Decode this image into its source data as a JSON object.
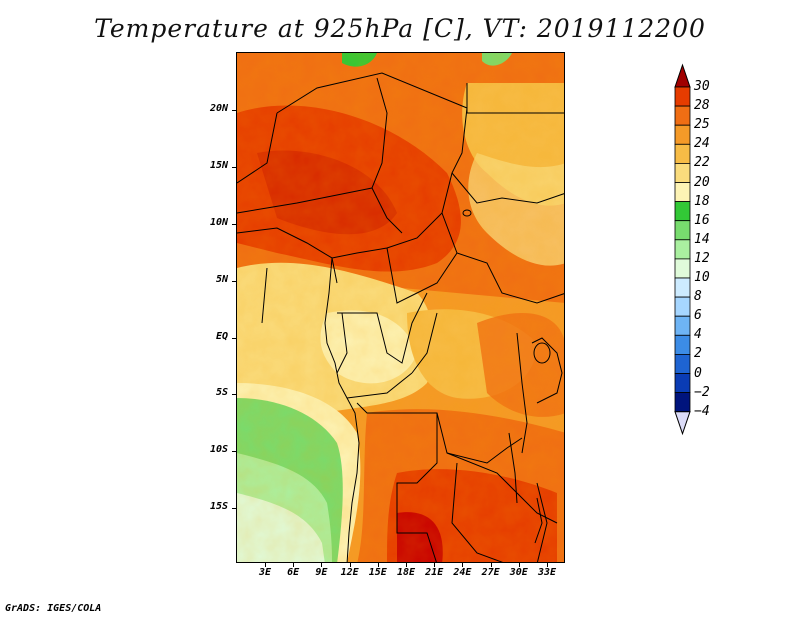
{
  "title": "Temperature at 925hPa [C], VT: 2019112200",
  "credit": "GrADS: IGES/COLA",
  "map": {
    "y_ticks": [
      "20N",
      "15N",
      "10N",
      "5N",
      "EQ",
      "5S",
      "10S",
      "15S"
    ],
    "x_ticks": [
      "3E",
      "6E",
      "9E",
      "12E",
      "15E",
      "18E",
      "21E",
      "24E",
      "27E",
      "30E",
      "33E"
    ]
  },
  "colorbar": {
    "labels": [
      "30",
      "28",
      "25",
      "24",
      "22",
      "20",
      "18",
      "16",
      "14",
      "12",
      "10",
      "8",
      "6",
      "4",
      "2",
      "0",
      "−2",
      "−4"
    ],
    "colors": [
      "#c80000",
      "#e63c00",
      "#f06e14",
      "#f59a28",
      "#f7bc46",
      "#fadc7d",
      "#fdf3b5",
      "#32c836",
      "#78dc6e",
      "#aaf0a0",
      "#e0fbda",
      "#cdebff",
      "#a6d6ff",
      "#6eb4f5",
      "#3c8ce6",
      "#1e64d2",
      "#0a3cb4",
      "#00147d"
    ],
    "top_arrow_color": "#a00000",
    "bottom_arrow_color": "#dcdcf8"
  }
}
